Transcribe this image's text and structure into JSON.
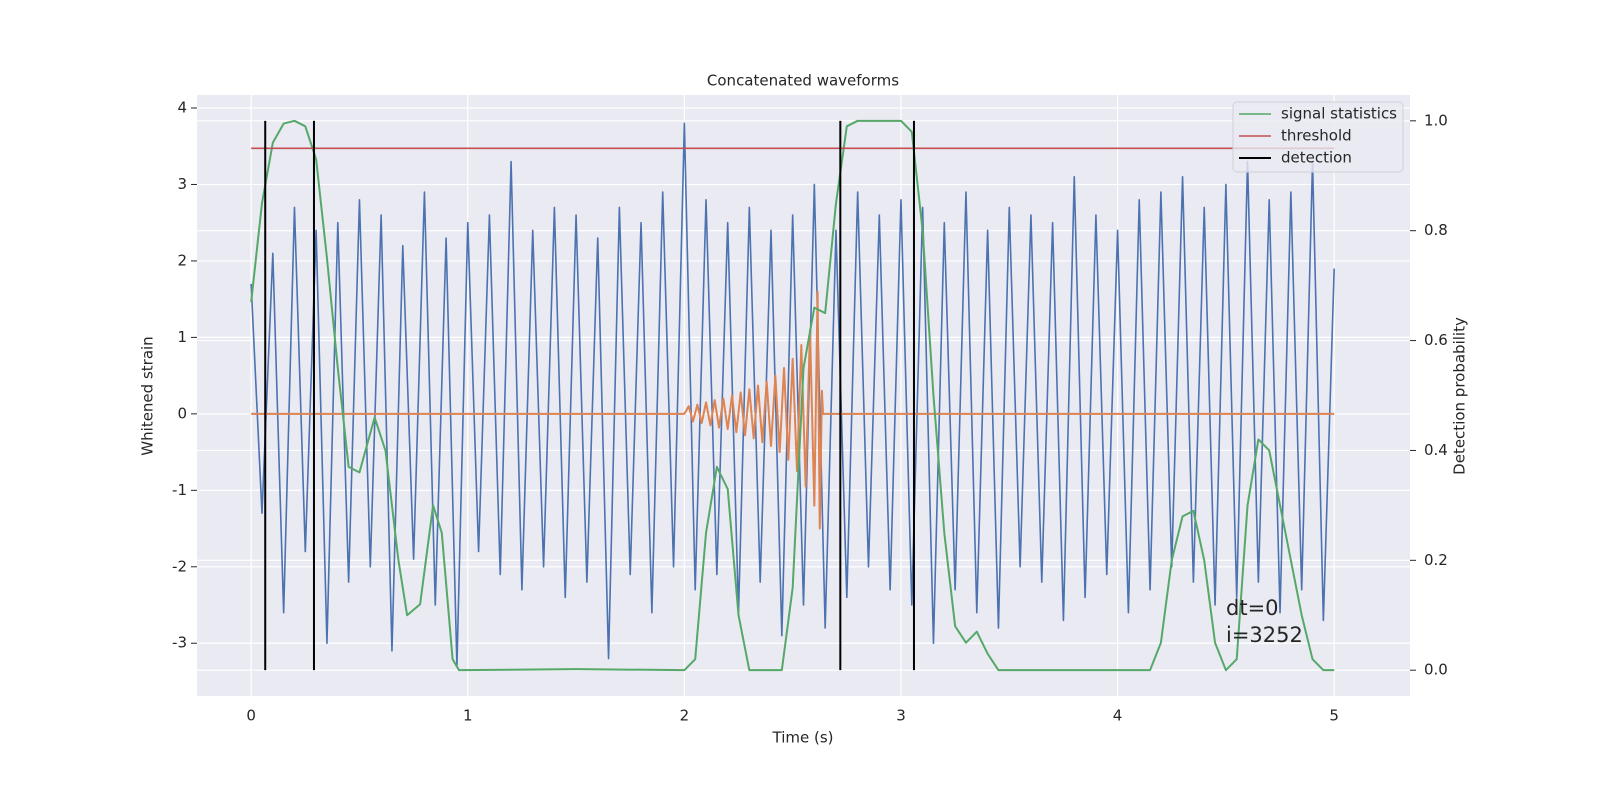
{
  "chart_data": {
    "type": "line",
    "title": "Concatenated waveforms",
    "xlabel": "Time (s)",
    "ylabel": "Whitened strain",
    "y2label": "Detection probability",
    "xlim": [
      -0.25,
      5.35
    ],
    "ylim": [
      -3.69,
      4.17
    ],
    "y2lim": [
      -0.047,
      1.047
    ],
    "xticks": [
      0,
      1,
      2,
      3,
      4,
      5
    ],
    "yticks": [
      -3,
      -2,
      -1,
      0,
      1,
      2,
      3,
      4
    ],
    "y2ticks": [
      {
        "value": 0,
        "label": "0.0"
      },
      {
        "value": 0.2,
        "label": "0.2"
      },
      {
        "value": 0.4,
        "label": "0.4"
      },
      {
        "value": 0.6,
        "label": "0.6"
      },
      {
        "value": 0.8,
        "label": "0.8"
      },
      {
        "value": 1,
        "label": "1.0"
      }
    ],
    "grid": true,
    "legend": "upper right",
    "series": [
      {
        "color": "#4c72b0",
        "x": [
          0,
          0.05,
          0.1,
          0.15,
          0.2,
          0.25,
          0.3,
          0.35,
          0.4,
          0.45,
          0.5,
          0.55,
          0.6,
          0.65,
          0.7,
          0.75,
          0.8,
          0.85,
          0.9,
          0.95,
          1,
          1.05,
          1.1,
          1.15,
          1.2,
          1.25,
          1.3,
          1.35,
          1.4,
          1.45,
          1.5,
          1.55,
          1.6,
          1.65,
          1.7,
          1.75,
          1.8,
          1.85,
          1.9,
          1.95,
          2,
          2.05,
          2.1,
          2.15,
          2.2,
          2.25,
          2.3,
          2.35,
          2.4,
          2.45,
          2.5,
          2.55,
          2.6,
          2.65,
          2.7,
          2.75,
          2.8,
          2.85,
          2.9,
          2.95,
          3,
          3.05,
          3.1,
          3.15,
          3.2,
          3.25,
          3.3,
          3.35,
          3.4,
          3.45,
          3.5,
          3.55,
          3.6,
          3.65,
          3.7,
          3.75,
          3.8,
          3.85,
          3.9,
          3.95,
          4,
          4.05,
          4.1,
          4.15,
          4.2,
          4.25,
          4.3,
          4.35,
          4.4,
          4.45,
          4.5,
          4.55,
          4.6,
          4.65,
          4.7,
          4.75,
          4.8,
          4.85,
          4.9,
          4.95,
          5
        ],
        "values": [
          1.7,
          -1.3,
          2.1,
          -2.6,
          2.7,
          -1.8,
          2.4,
          -3.0,
          2.5,
          -2.2,
          2.8,
          -2.0,
          2.6,
          -3.1,
          2.2,
          -1.9,
          2.9,
          -2.5,
          2.3,
          -3.3,
          2.5,
          -1.8,
          2.6,
          -2.1,
          3.3,
          -2.3,
          2.4,
          -2.0,
          2.7,
          -2.4,
          2.6,
          -2.2,
          2.3,
          -3.2,
          2.7,
          -2.1,
          2.5,
          -2.6,
          2.9,
          -2.0,
          3.8,
          -2.3,
          2.8,
          -2.1,
          2.5,
          -2.6,
          2.7,
          -2.2,
          2.4,
          -2.9,
          2.6,
          -2.5,
          3.0,
          -2.8,
          2.4,
          -2.4,
          2.9,
          -2.0,
          2.6,
          -2.3,
          2.8,
          -2.5,
          2.7,
          -3.0,
          2.5,
          -2.3,
          2.9,
          -2.6,
          2.4,
          -2.8,
          2.7,
          -2.0,
          2.6,
          -2.2,
          2.5,
          -2.7,
          3.1,
          -2.4,
          2.6,
          -2.1,
          2.4,
          -2.6,
          2.8,
          -2.3,
          2.9,
          -2.0,
          3.1,
          -2.2,
          2.7,
          -2.5,
          3.0,
          -2.4,
          3.3,
          -2.2,
          2.8,
          -2.6,
          2.9,
          -2.3,
          3.3,
          -2.7,
          1.9
        ]
      },
      {
        "color": "#dd8452",
        "x": [
          0,
          2.0,
          2.02,
          2.04,
          2.06,
          2.08,
          2.1,
          2.12,
          2.14,
          2.16,
          2.18,
          2.2,
          2.22,
          2.24,
          2.26,
          2.28,
          2.3,
          2.32,
          2.34,
          2.36,
          2.38,
          2.4,
          2.42,
          2.44,
          2.46,
          2.48,
          2.5,
          2.52,
          2.54,
          2.56,
          2.58,
          2.6,
          2.615,
          2.625,
          2.635,
          2.64,
          5
        ],
        "values": [
          0,
          0,
          0.1,
          -0.1,
          0.12,
          -0.12,
          0.15,
          -0.15,
          0.18,
          -0.18,
          0.2,
          -0.2,
          0.24,
          -0.24,
          0.28,
          -0.28,
          0.32,
          -0.32,
          0.37,
          -0.37,
          0.42,
          -0.42,
          0.5,
          -0.5,
          0.6,
          -0.6,
          0.72,
          -0.75,
          0.9,
          -0.95,
          1.1,
          -1.2,
          1.6,
          -1.5,
          0.3,
          0,
          0
        ]
      },
      {
        "name": "signal statistics",
        "color": "#55a868",
        "axis": "y2",
        "x": [
          0,
          0.05,
          0.1,
          0.15,
          0.2,
          0.25,
          0.3,
          0.35,
          0.4,
          0.45,
          0.5,
          0.57,
          0.62,
          0.68,
          0.72,
          0.78,
          0.84,
          0.88,
          0.93,
          0.96,
          1.5,
          2.0,
          2.05,
          2.1,
          2.15,
          2.2,
          2.25,
          2.3,
          2.45,
          2.5,
          2.55,
          2.6,
          2.65,
          2.7,
          2.75,
          2.8,
          3.0,
          3.05,
          3.1,
          3.15,
          3.2,
          3.25,
          3.3,
          3.35,
          3.4,
          3.45,
          4.15,
          4.2,
          4.25,
          4.3,
          4.35,
          4.4,
          4.45,
          4.5,
          4.55,
          4.6,
          4.65,
          4.7,
          4.75,
          4.8,
          4.85,
          4.9,
          4.95,
          5.0
        ],
        "values": [
          0.67,
          0.85,
          0.96,
          0.995,
          1.0,
          0.99,
          0.93,
          0.75,
          0.55,
          0.37,
          0.36,
          0.46,
          0.4,
          0.2,
          0.1,
          0.12,
          0.3,
          0.25,
          0.02,
          0.0,
          0.002,
          0.0,
          0.02,
          0.25,
          0.37,
          0.33,
          0.1,
          0.0,
          0.0,
          0.15,
          0.55,
          0.66,
          0.65,
          0.85,
          0.99,
          1.0,
          1.0,
          0.98,
          0.8,
          0.5,
          0.25,
          0.08,
          0.05,
          0.07,
          0.03,
          0.0,
          0.0,
          0.05,
          0.2,
          0.28,
          0.29,
          0.2,
          0.05,
          0.0,
          0.02,
          0.3,
          0.42,
          0.4,
          0.3,
          0.2,
          0.1,
          0.02,
          0.0,
          0.0
        ]
      }
    ],
    "threshold": {
      "name": "threshold",
      "color": "#c44e52",
      "value": 0.95
    },
    "detection": {
      "name": "detection",
      "color": "#000000",
      "values": [
        0.065,
        0.29,
        2.72,
        3.06
      ]
    },
    "annotations": [
      "dt=0",
      "i=3252"
    ]
  }
}
